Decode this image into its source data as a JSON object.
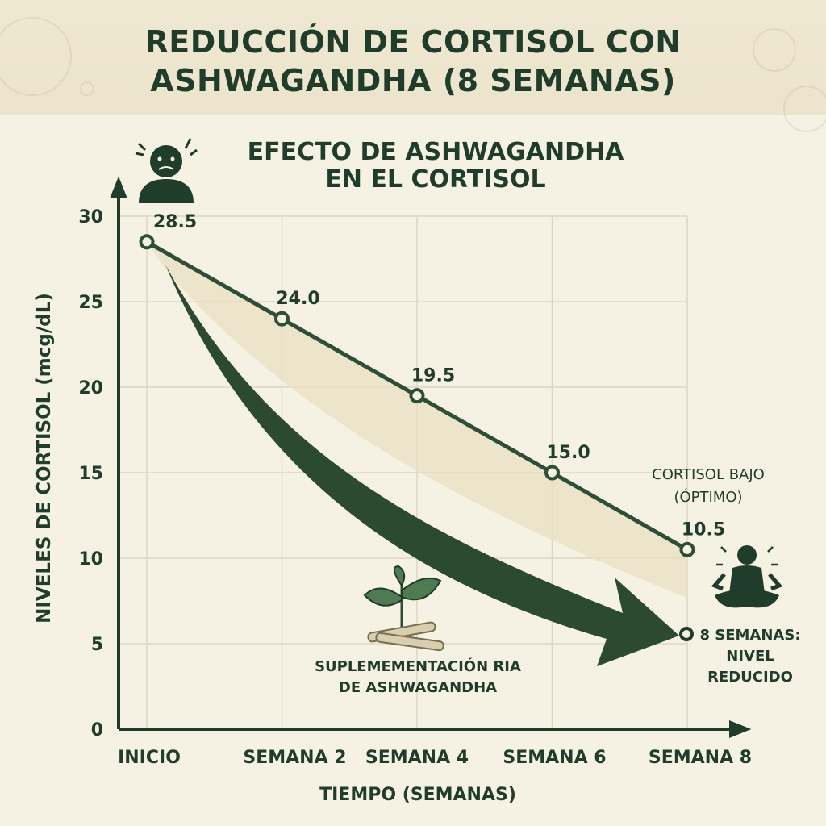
{
  "header": {
    "title_line1": "REDUCCIÓN DE CORTISOL CON",
    "title_line2": "ASHWAGANDHA (8 SEMANAS)"
  },
  "colors": {
    "primary": "#2e4f36",
    "dark": "#1f3d2a",
    "background": "#f6f2e3",
    "banner": "#ece4cc",
    "grid": "#ddd6c2"
  },
  "icons": {
    "stressed_person": "stressed-person-icon",
    "calm_person": "meditating-person-icon",
    "plant": "ashwagandha-plant-icon"
  },
  "chart_data": {
    "type": "line",
    "title": "EFECTO DE ASHWAGANDHA",
    "title_line2": "EN EL CORTISOL",
    "xlabel": "TIEMPO (SEMANAS)",
    "ylabel": "NIVELES DE CORTISOL (mcg/dL)",
    "categories": [
      "INICIO",
      "SEMANA 2",
      "SEMANA 4",
      "SEMANA 6",
      "SEMANA 8"
    ],
    "values": [
      28.5,
      24.0,
      19.5,
      15.0,
      10.5
    ],
    "data_labels": [
      "28.5",
      "24.0",
      "19.5",
      "15.0",
      "10.5"
    ],
    "yticks": [
      0,
      5,
      10,
      15,
      20,
      25,
      30
    ],
    "ylim": [
      0,
      30
    ],
    "grid": true,
    "annotations": {
      "low_cortisol_line1": "CORTISOL BAJO",
      "low_cortisol_line2": "(ÓPTIMO)",
      "arrow_label_line1": "SUPLEMEMENTACIÓN RIA",
      "arrow_label_line2": "DE ASHWAGANDHA",
      "end_label_line1": "8 SEMANAS:",
      "end_label_line2": "NIVEL",
      "end_label_line3": "REDUCIDO"
    }
  }
}
